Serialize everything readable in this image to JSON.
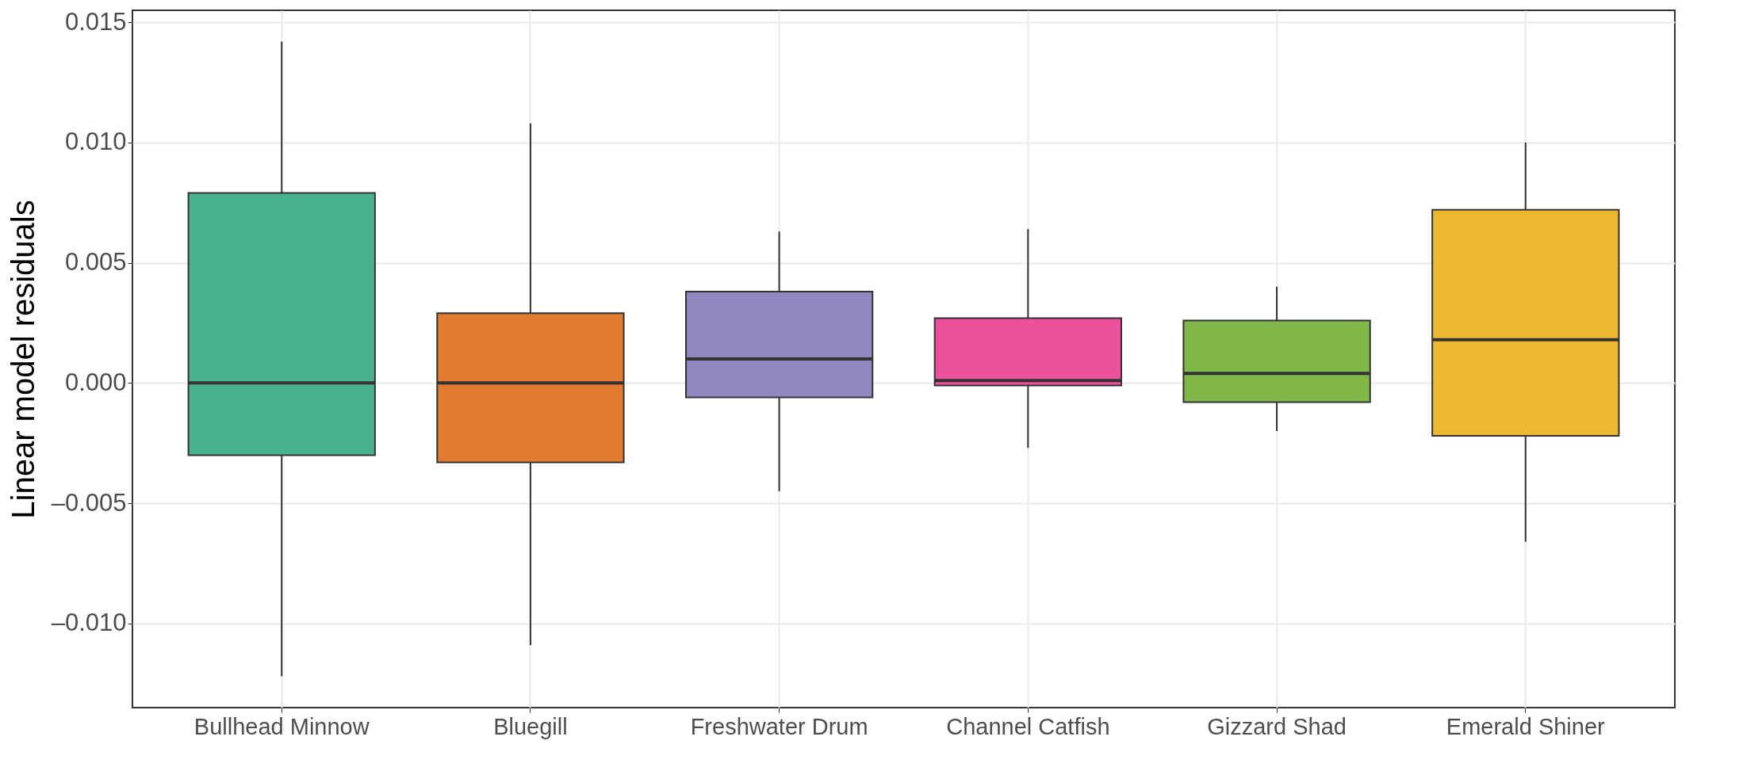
{
  "chart_data": {
    "type": "box",
    "ylabel": "Linear model residuals",
    "categories": [
      "Bullhead Minnow",
      "Bluegill",
      "Freshwater Drum",
      "Channel Catfish",
      "Gizzard Shad",
      "Emerald Shiner"
    ],
    "boxes": [
      {
        "low": -0.0122,
        "q1": -0.003,
        "median": 0.0,
        "q3": 0.0079,
        "high": 0.0142
      },
      {
        "low": -0.0109,
        "q1": -0.0033,
        "median": 0.0,
        "q3": 0.0029,
        "high": 0.0108
      },
      {
        "low": -0.0045,
        "q1": -0.0006,
        "median": 0.001,
        "q3": 0.0038,
        "high": 0.0063
      },
      {
        "low": -0.0027,
        "q1": -0.0001,
        "median": 0.0001,
        "q3": 0.0027,
        "high": 0.0064
      },
      {
        "low": -0.002,
        "q1": -0.0008,
        "median": 0.0004,
        "q3": 0.0026,
        "high": 0.004
      },
      {
        "low": -0.0066,
        "q1": -0.0022,
        "median": 0.0018,
        "q3": 0.0072,
        "high": 0.01
      }
    ],
    "colors": [
      "#4ab190",
      "#e07b31",
      "#9089c1",
      "#ec519b",
      "#80b84a",
      "#ebb92f"
    ],
    "ylim": [
      -0.0135,
      0.0155
    ],
    "yticks": [
      {
        "value": -0.01,
        "label": "–0.010"
      },
      {
        "value": -0.005,
        "label": "–0.005"
      },
      {
        "value": 0,
        "label": "0.000"
      },
      {
        "value": 0.005,
        "label": "0.005"
      },
      {
        "value": 0.01,
        "label": "0.010"
      },
      {
        "value": 0.015,
        "label": "0.015"
      }
    ],
    "grid": true
  }
}
